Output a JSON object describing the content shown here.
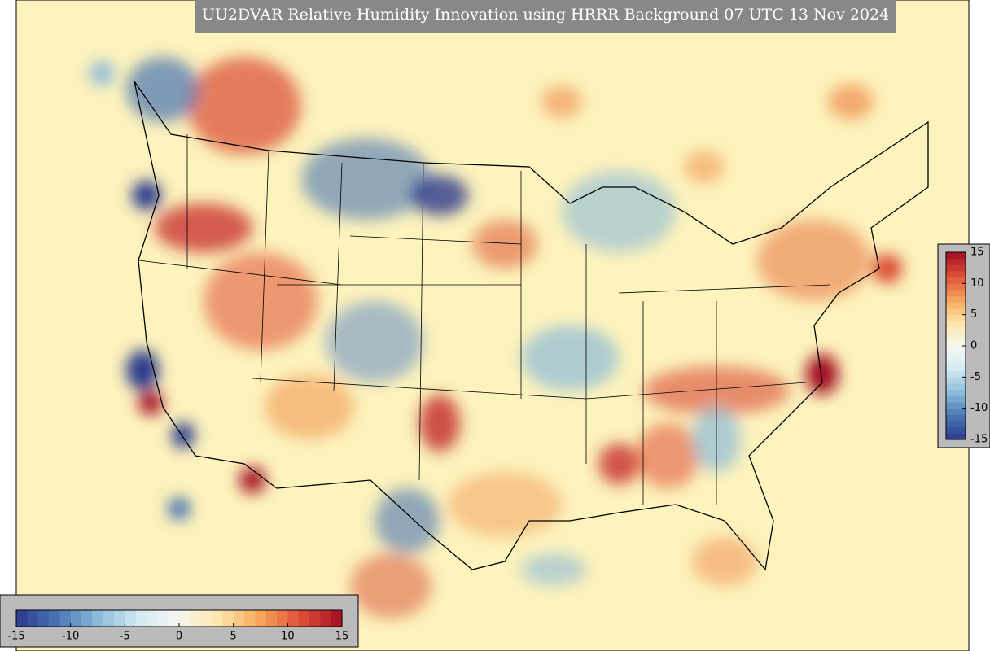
{
  "title": "UU2DVAR Relative Humidity Innovation using HRRR Background 07 UTC 13 Nov 2024",
  "colorbar_right": {
    "range": [
      -15,
      15
    ],
    "ticks": [
      -15,
      -10,
      -5,
      0,
      5,
      10,
      15
    ],
    "orientation": "vertical"
  },
  "colorbar_bottom": {
    "range": [
      -15,
      15
    ],
    "ticks": [
      -15,
      -10,
      -5,
      0,
      5,
      10,
      15
    ],
    "orientation": "horizontal"
  },
  "colormap": [
    "#2a3a8c",
    "#4a74b4",
    "#8cbad9",
    "#d3e9f1",
    "#f7f7f2",
    "#fde6a8",
    "#f6a45c",
    "#de4f37",
    "#a30d23"
  ]
}
